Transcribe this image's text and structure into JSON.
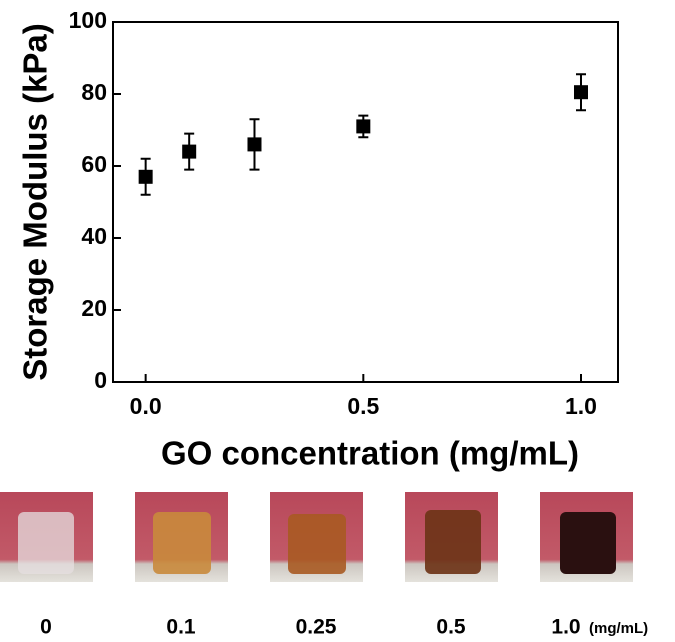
{
  "chart_data": {
    "type": "scatter",
    "x": [
      0,
      0.1,
      0.25,
      0.5,
      1.0
    ],
    "values": [
      57,
      64,
      66,
      71,
      80.5
    ],
    "errors": [
      5,
      5,
      7,
      3,
      5
    ],
    "color": "#000000",
    "xlabel": "GO concentration (mg/mL)",
    "ylabel": "Storage Modulus (kPa)",
    "xlim": [
      -0.075,
      1.085
    ],
    "ylim": [
      0,
      100
    ],
    "xticks": [
      {
        "value": 0,
        "label": "0.0"
      },
      {
        "value": 0.5,
        "label": "0.5"
      },
      {
        "value": 1.0,
        "label": "1.0"
      }
    ],
    "yticks": [
      0,
      20,
      40,
      60,
      80,
      100
    ]
  },
  "photos": {
    "labels": [
      "0",
      "0.1",
      "0.25",
      "0.5",
      "1.0"
    ],
    "unit": "(mg/mL)"
  }
}
